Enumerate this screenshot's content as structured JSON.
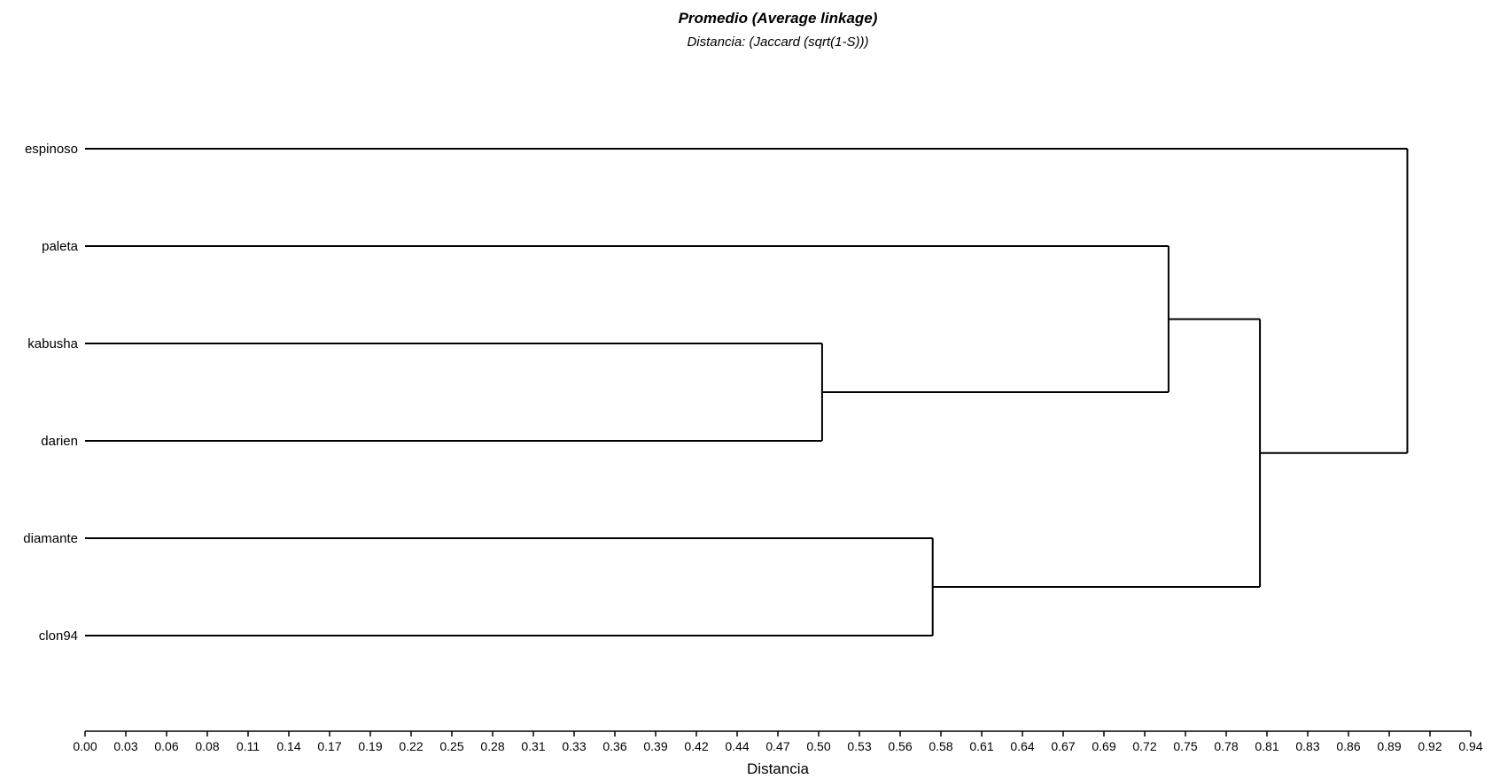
{
  "chart_data": {
    "type": "dendrogram",
    "title": "Promedio (Average linkage)",
    "subtitle": "Distancia: (Jaccard (sqrt(1-S)))",
    "xlabel": "Distancia",
    "xlim": [
      0.0,
      0.94
    ],
    "x_ticks": [
      "0.00",
      "0.03",
      "0.06",
      "0.08",
      "0.11",
      "0.14",
      "0.17",
      "0.19",
      "0.22",
      "0.25",
      "0.28",
      "0.31",
      "0.33",
      "0.36",
      "0.39",
      "0.42",
      "0.44",
      "0.47",
      "0.50",
      "0.53",
      "0.56",
      "0.58",
      "0.61",
      "0.64",
      "0.67",
      "0.69",
      "0.72",
      "0.75",
      "0.78",
      "0.81",
      "0.83",
      "0.86",
      "0.89",
      "0.92",
      "0.94"
    ],
    "leaves": [
      "espinoso",
      "paleta",
      "kabusha",
      "darien",
      "diamante",
      "clon94"
    ],
    "merges": [
      {
        "id": "m1",
        "children": [
          "kabusha",
          "darien"
        ],
        "distance": 0.5
      },
      {
        "id": "m2",
        "children": [
          "diamante",
          "clon94"
        ],
        "distance": 0.575
      },
      {
        "id": "m3",
        "children": [
          "paleta",
          "m1"
        ],
        "distance": 0.735
      },
      {
        "id": "m4",
        "children": [
          "m3",
          "m2"
        ],
        "distance": 0.797
      },
      {
        "id": "m5",
        "children": [
          "espinoso",
          "m4"
        ],
        "distance": 0.897
      }
    ]
  }
}
